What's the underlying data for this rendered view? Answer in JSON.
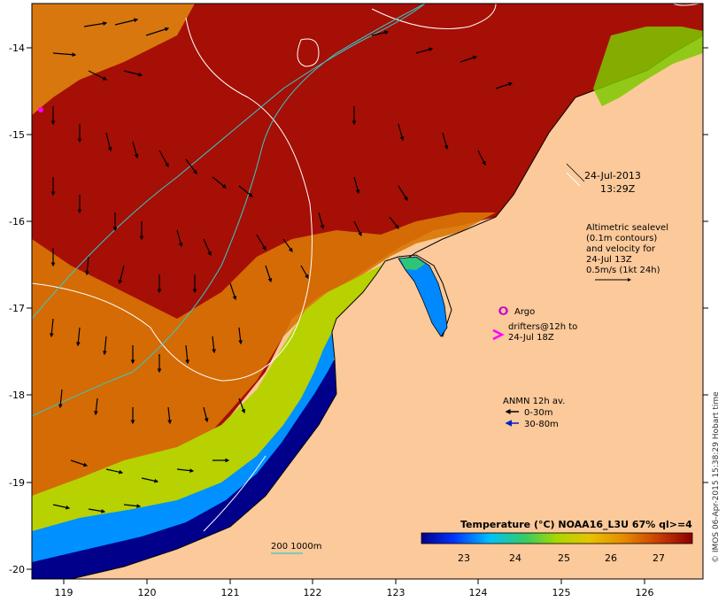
{
  "map": {
    "date": "24-Jul-2013",
    "time": "13:29Z",
    "altimetry_note": [
      "Altimetric sealevel",
      "(0.1m contours)",
      "and velocity for",
      "24-Jul 13Z",
      "0.5m/s (1kt 24h)"
    ],
    "argo_label": "Argo",
    "drifters_label": [
      "drifters@12h to",
      "24-Jul 18Z"
    ],
    "anmn_title": "ANMN 12h av.",
    "anmn_shallow": "0-30m",
    "anmn_deep": "30-80m",
    "depth_label": "200  1000m",
    "colorbar_title": "Temperature (°C) NOAA16_L3U 67% ql>=4",
    "colorbar_ticks": [
      "23",
      "24",
      "25",
      "26",
      "27"
    ],
    "credit": "© IMOS 06-Apr-2015 15:38:29 Hobart time",
    "lon_ticks": [
      "119",
      "120",
      "121",
      "122",
      "123",
      "124",
      "125",
      "126"
    ],
    "lat_ticks": [
      "-14",
      "-15",
      "-16",
      "-17",
      "-18",
      "-19",
      "-20"
    ],
    "colors": {
      "land": "#fbc99a",
      "warm": "#a50f06",
      "arrow_shallow": "#000000",
      "arrow_deep": "#0022cc",
      "argo": "#cc00cc",
      "drifter": "#ff00ff",
      "contour": "#ffffff",
      "isobath": "#33cccc"
    }
  }
}
